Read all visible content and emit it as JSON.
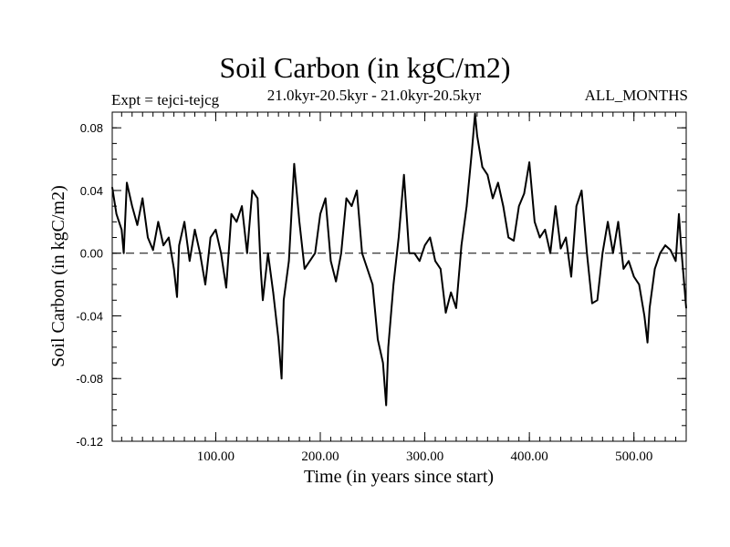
{
  "chart_data": {
    "type": "line",
    "title": "Soil Carbon (in kgC/m2)",
    "subtitle": "21.0kyr-20.5kyr - 21.0kyr-20.5kyr",
    "left_label": "Expt = tejci-tejcg",
    "right_label": "ALL_MONTHS",
    "xlabel": "Time (in years since start)",
    "ylabel": "Soil Carbon (in kgC/m2)",
    "xlim": [
      1,
      550
    ],
    "ylim": [
      -0.12,
      0.09
    ],
    "x_ticks": [
      100,
      200,
      300,
      400,
      500
    ],
    "x_tick_labels": [
      "100.00",
      "200.00",
      "300.00",
      "400.00",
      "500.00"
    ],
    "y_ticks": [
      -0.12,
      -0.08,
      -0.04,
      0.0,
      0.04,
      0.08
    ],
    "y_tick_labels": [
      "-0.12",
      "-0.08",
      "-0.04",
      "0.00",
      "0.04",
      "0.08"
    ],
    "reference_line": 0.0,
    "grid": false,
    "series": [
      {
        "color": "#000000",
        "x": [
          1,
          5,
          10,
          12,
          15,
          20,
          25,
          30,
          35,
          40,
          45,
          50,
          55,
          60,
          63,
          65,
          70,
          75,
          80,
          85,
          90,
          95,
          100,
          105,
          110,
          115,
          120,
          125,
          130,
          135,
          140,
          143,
          145,
          150,
          155,
          160,
          163,
          165,
          170,
          175,
          180,
          185,
          190,
          195,
          200,
          205,
          210,
          215,
          220,
          225,
          230,
          235,
          240,
          245,
          250,
          255,
          260,
          263,
          265,
          270,
          275,
          280,
          285,
          290,
          295,
          300,
          305,
          310,
          315,
          320,
          325,
          330,
          335,
          340,
          345,
          348,
          350,
          355,
          360,
          365,
          370,
          375,
          380,
          385,
          390,
          395,
          400,
          405,
          410,
          415,
          420,
          425,
          430,
          435,
          440,
          445,
          450,
          455,
          460,
          465,
          470,
          475,
          480,
          485,
          490,
          495,
          500,
          505,
          510,
          513,
          515,
          520,
          525,
          530,
          535,
          540,
          543,
          545,
          550
        ],
        "y": [
          0.042,
          0.025,
          0.015,
          0.0,
          0.045,
          0.03,
          0.018,
          0.035,
          0.01,
          0.002,
          0.02,
          0.005,
          0.01,
          -0.01,
          -0.028,
          0.005,
          0.02,
          -0.005,
          0.015,
          0.0,
          -0.02,
          0.01,
          0.015,
          0.0,
          -0.022,
          0.025,
          0.02,
          0.03,
          0.0,
          0.04,
          0.035,
          -0.01,
          -0.03,
          0.0,
          -0.025,
          -0.055,
          -0.08,
          -0.03,
          -0.005,
          0.057,
          0.02,
          -0.01,
          -0.005,
          0.0,
          0.025,
          0.035,
          -0.005,
          -0.018,
          0.0,
          0.035,
          0.03,
          0.04,
          0.0,
          -0.01,
          -0.02,
          -0.055,
          -0.07,
          -0.097,
          -0.06,
          -0.02,
          0.01,
          0.05,
          0.0,
          0.0,
          -0.005,
          0.005,
          0.01,
          -0.005,
          -0.01,
          -0.038,
          -0.025,
          -0.035,
          0.005,
          0.03,
          0.065,
          0.089,
          0.075,
          0.055,
          0.05,
          0.035,
          0.045,
          0.03,
          0.01,
          0.008,
          0.03,
          0.038,
          0.058,
          0.02,
          0.01,
          0.015,
          0.0,
          0.03,
          0.003,
          0.01,
          -0.015,
          0.03,
          0.04,
          0.0,
          -0.032,
          -0.03,
          0.0,
          0.02,
          0.0,
          0.02,
          -0.01,
          -0.005,
          -0.015,
          -0.02,
          -0.04,
          -0.057,
          -0.035,
          -0.01,
          0.0,
          0.005,
          0.002,
          -0.005,
          0.025,
          0.005,
          -0.035
        ]
      }
    ]
  }
}
